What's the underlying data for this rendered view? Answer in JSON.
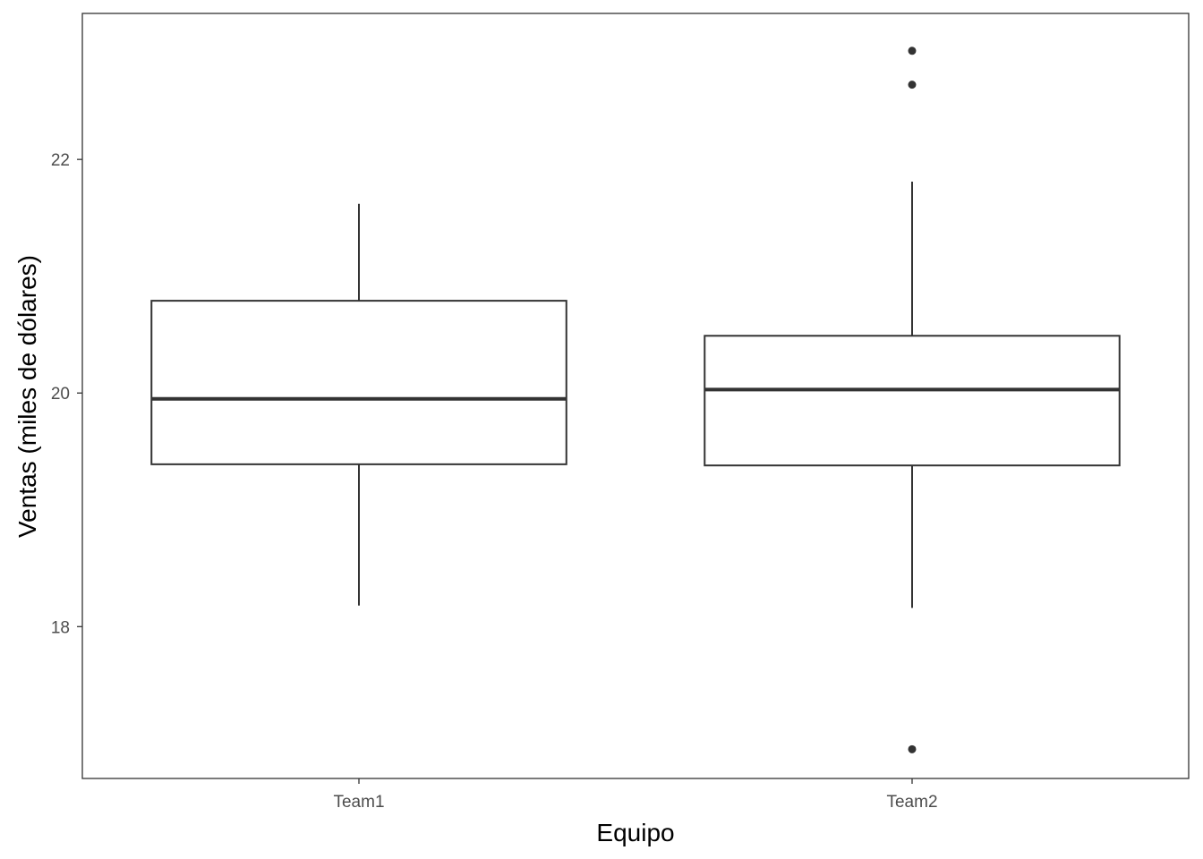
{
  "chart_data": {
    "type": "boxplot",
    "title": "",
    "xlabel": "Equipo",
    "ylabel": "Ventas (miles de dólares)",
    "categories": [
      "Team1",
      "Team2"
    ],
    "ylim": [
      16.7,
      23.25
    ],
    "yticks": [
      18,
      20,
      22
    ],
    "ytick_labels": [
      "18",
      "20",
      "22"
    ],
    "grid": false,
    "legend": "none",
    "boxes": [
      {
        "category": "Team1",
        "whisker_low": 18.18,
        "q1": 19.39,
        "median": 19.95,
        "q3": 20.79,
        "whisker_high": 21.62,
        "outliers": []
      },
      {
        "category": "Team2",
        "whisker_low": 18.16,
        "q1": 19.38,
        "median": 20.03,
        "q3": 20.49,
        "whisker_high": 21.81,
        "outliers": [
          22.93,
          22.64,
          16.95
        ]
      }
    ],
    "colors": {
      "box_stroke": "#333333",
      "box_fill": "#ffffff",
      "panel_border": "#333333",
      "tick_text": "#4d4d4d",
      "title_text": "#000000"
    }
  }
}
